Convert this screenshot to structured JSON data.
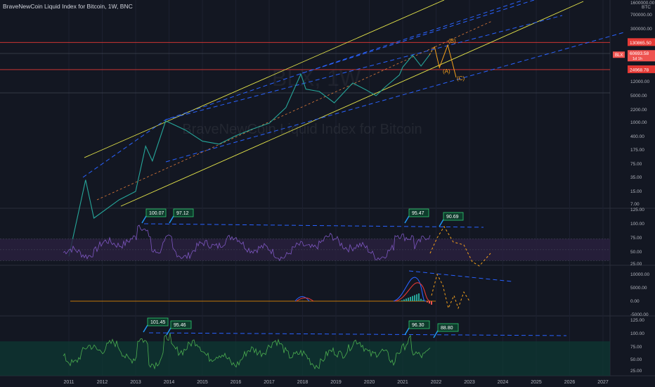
{
  "header": {
    "title": "BraveNewCoin Liquid Index for Bitcoin, 1W, BNC"
  },
  "watermark": {
    "symbol": "BLX, 1W",
    "name": "BraveNewCoin Liquid Index for Bitcoin"
  },
  "colors": {
    "background": "#131722",
    "price": "#26a69a",
    "price_down": "#ef5350",
    "channel_yellow": "#e8e84a",
    "trend_blue": "#2962ff",
    "projection_orange": "#f7a21b",
    "rsi_line": "#7e57c2",
    "rsi_band": "#2a2140",
    "hline_red": "#e53935",
    "macd_line": "#2962ff",
    "macd_signal": "#ff6d00",
    "osc_line": "#4caf50",
    "osc_band": "#0d3a33"
  },
  "chart_data": [
    {
      "type": "line",
      "panel": "price",
      "series_label": "BLX",
      "scale": "log",
      "unit": "BTC",
      "y_ticks": [
        "7.00",
        "15.00",
        "35.00",
        "75.00",
        "175.00",
        "400.00",
        "1000.00",
        "2200.00",
        "5000.00",
        "12000.00",
        "300000.00",
        "700000.00",
        "1600000.00"
      ],
      "y_tick_values": [
        7,
        15,
        35,
        75,
        175,
        400,
        1000,
        2200,
        5000,
        12000,
        300000,
        700000,
        1600000
      ],
      "x": [
        2011.0,
        2011.5,
        2011.75,
        2012.5,
        2013.0,
        2013.3,
        2013.5,
        2013.9,
        2014.5,
        2015.0,
        2015.5,
        2016.0,
        2016.5,
        2017.0,
        2017.5,
        2017.95,
        2018.1,
        2018.5,
        2018.95,
        2019.5,
        2019.9,
        2020.2,
        2020.5,
        2020.9,
        2021.0,
        2021.3,
        2021.55,
        2021.8
      ],
      "y": [
        0.3,
        30,
        3,
        9,
        15,
        220,
        90,
        1100,
        600,
        300,
        250,
        420,
        650,
        950,
        2500,
        19000,
        7500,
        6500,
        3300,
        11000,
        7200,
        5000,
        9000,
        18000,
        29000,
        60000,
        31000,
        60693.58
      ],
      "current_value": "60693.58",
      "current_sub": "1d 1h",
      "price_labels": [
        {
          "value": "130865.50",
          "y": 130865.5
        },
        {
          "value": "24968.78",
          "y": 24968.78
        }
      ],
      "wave_labels": [
        "(B)",
        "(A)",
        "(C)"
      ]
    },
    {
      "type": "line",
      "panel": "rsi",
      "y_ticks": [
        "125.00",
        "100.00",
        "75.00",
        "50.00",
        "25.00"
      ],
      "y_tick_values": [
        125,
        100,
        75,
        50,
        25
      ],
      "band": [
        30,
        70
      ],
      "annotations": [
        {
          "label": "100.07",
          "x": 2013.22,
          "y": 100.07
        },
        {
          "label": "97.12",
          "x": 2013.9,
          "y": 97.12
        },
        {
          "label": "95.47",
          "x": 2021.0,
          "y": 95.47
        },
        {
          "label": "90.69",
          "x": 2021.85,
          "y": 90.69
        }
      ]
    },
    {
      "type": "line",
      "panel": "macd",
      "y_ticks": [
        "10000.00",
        "5000.00",
        "0.00",
        "-5000.00"
      ],
      "y_tick_values": [
        10000,
        5000,
        0,
        -5000
      ]
    },
    {
      "type": "line",
      "panel": "oscillator",
      "y_ticks": [
        "125.00",
        "100.00",
        "75.00",
        "50.00",
        "25.00"
      ],
      "y_tick_values": [
        125,
        100,
        75,
        50,
        25
      ],
      "band": [
        0,
        80
      ],
      "annotations": [
        {
          "label": "101.45",
          "x": 2013.2,
          "y": 101.45
        },
        {
          "label": "95.46",
          "x": 2013.9,
          "y": 95.46
        },
        {
          "label": "96.30",
          "x": 2021.1,
          "y": 96.3
        },
        {
          "label": "88.80",
          "x": 2021.9,
          "y": 88.8
        }
      ]
    }
  ],
  "x_axis": {
    "labels": [
      "2011",
      "2012",
      "2013",
      "2014",
      "2015",
      "2016",
      "2017",
      "2018",
      "2019",
      "2020",
      "2021",
      "2022",
      "2023",
      "2024",
      "2025",
      "2026",
      "2027"
    ]
  }
}
